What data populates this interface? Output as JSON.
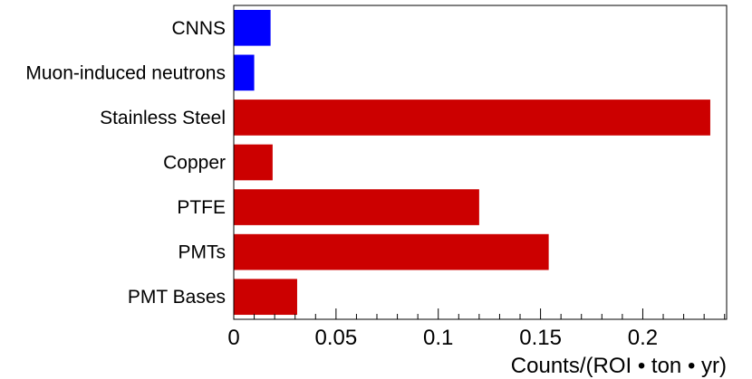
{
  "chart_data": {
    "type": "bar",
    "orientation": "horizontal",
    "categories": [
      "CNNS",
      "Muon-induced neutrons",
      "Stainless Steel",
      "Copper",
      "PTFE",
      "PMTs",
      "PMT Bases"
    ],
    "values": [
      0.018,
      0.01,
      0.233,
      0.019,
      0.12,
      0.154,
      0.031
    ],
    "bar_colors": [
      "#0000ff",
      "#0000ff",
      "#cc0000",
      "#cc0000",
      "#cc0000",
      "#cc0000",
      "#cc0000"
    ],
    "xlim": [
      0,
      0.241
    ],
    "xticks": [
      0,
      0.05,
      0.1,
      0.15,
      0.2
    ],
    "xtick_labels": [
      "0",
      "0.05",
      "0.1",
      "0.15",
      "0.2"
    ],
    "xlabel": "Counts/(ROI • ton • yr)",
    "title": "",
    "grid": false
  }
}
